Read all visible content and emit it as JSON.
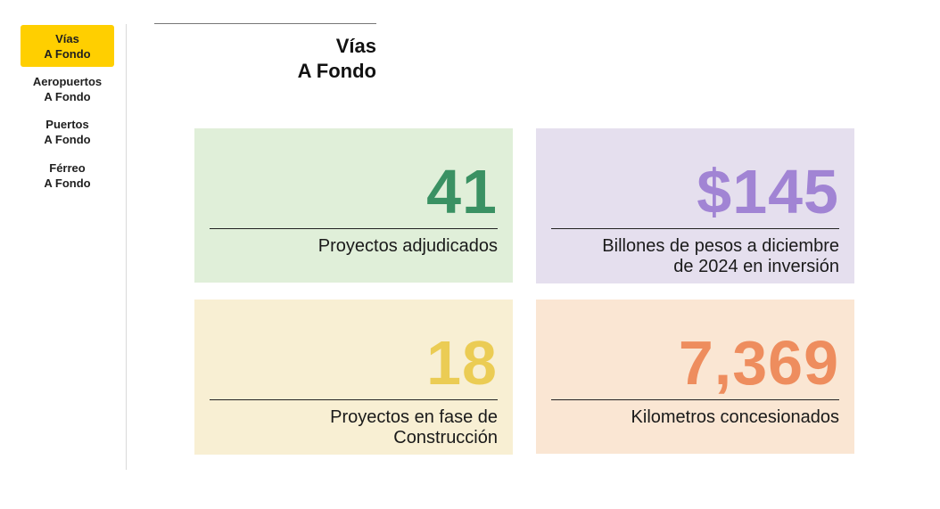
{
  "nav": {
    "items": [
      {
        "line1": "Vías",
        "line2": "A Fondo",
        "active": true
      },
      {
        "line1": "Aeropuertos",
        "line2": "A Fondo",
        "active": false
      },
      {
        "line1": "Puertos",
        "line2": "A Fondo",
        "active": false
      },
      {
        "line1": "Férreo",
        "line2": "A Fondo",
        "active": false
      }
    ],
    "active_color": "#ffcf00"
  },
  "header": {
    "title_line1": "Vías",
    "title_line2": "A Fondo"
  },
  "cards": [
    {
      "value": "41",
      "label_line1": "Proyectos adjudicados",
      "label_line2": "",
      "bg": "#e0efd9",
      "value_color": "#3a9163"
    },
    {
      "value": "$145",
      "label_line1": "Billones de pesos a diciembre",
      "label_line2": "de 2024 en inversión",
      "bg": "#e5dfee",
      "value_color": "#a184d4"
    },
    {
      "value": "18",
      "label_line1": "Proyectos en fase de",
      "label_line2": "Construcción",
      "bg": "#f8efd3",
      "value_color": "#ebcc54"
    },
    {
      "value": "7,369",
      "label_line1": "Kilometros concesionados",
      "label_line2": "",
      "bg": "#fae6d3",
      "value_color": "#ee8d5e"
    }
  ]
}
